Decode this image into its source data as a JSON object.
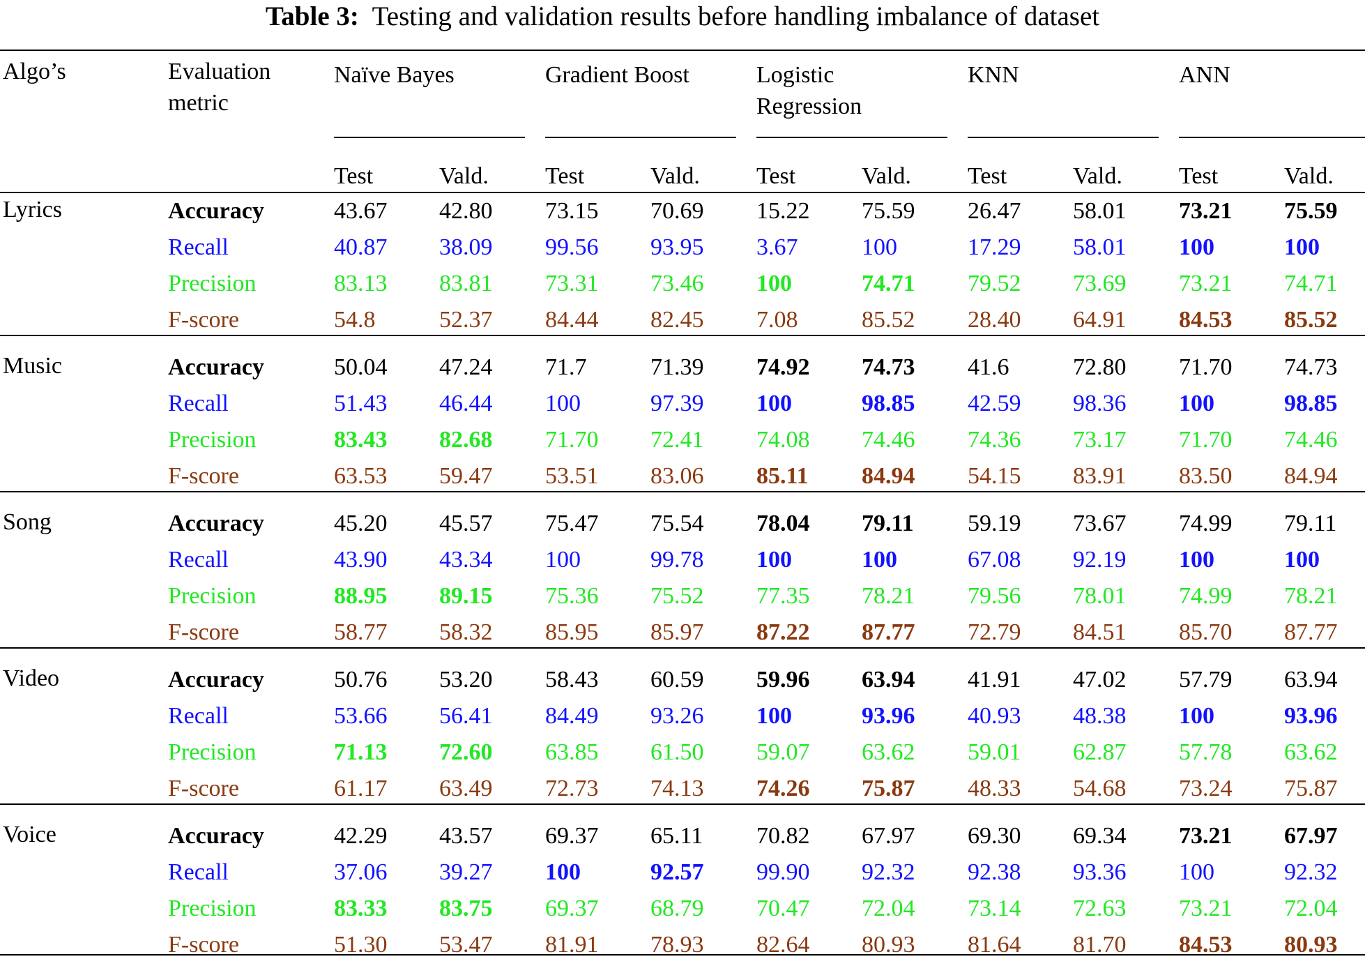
{
  "caption": {
    "label": "Table 3:",
    "text": "Testing and validation results before handling imbalance of dataset"
  },
  "header": {
    "algos": "Algo’s",
    "metric_line1": "Evaluation",
    "metric_line2": "metric",
    "models": [
      {
        "line1": "Naïve Bayes",
        "line2": ""
      },
      {
        "line1": "Gradient Boost",
        "line2": ""
      },
      {
        "line1": "Logistic",
        "line2": "Regression"
      },
      {
        "line1": "KNN",
        "line2": ""
      },
      {
        "line1": "ANN",
        "line2": ""
      }
    ],
    "test": "Test",
    "vald": "Vald."
  },
  "colors": {
    "accuracy": "#000000",
    "recall": "#1212ff",
    "precision": "#22e822",
    "fscore": "#8a3a10"
  },
  "groups": [
    {
      "name": "Lyrics",
      "rows": [
        {
          "metric": "Accuracy",
          "kind": "acc",
          "values": [
            "43.67",
            "42.80",
            "73.15",
            "70.69",
            "15.22",
            "75.59",
            "26.47",
            "58.01",
            "73.21",
            "75.59"
          ],
          "bold": [
            8,
            9
          ]
        },
        {
          "metric": "Recall",
          "kind": "rec",
          "values": [
            "40.87",
            "38.09",
            "99.56",
            "93.95",
            "3.67",
            "100",
            "17.29",
            "58.01",
            "100",
            "100"
          ],
          "bold": [
            8,
            9
          ]
        },
        {
          "metric": "Precision",
          "kind": "pre",
          "values": [
            "83.13",
            "83.81",
            "73.31",
            "73.46",
            "100",
            "74.71",
            "79.52",
            "73.69",
            "73.21",
            "74.71"
          ],
          "bold": [
            4,
            5
          ]
        },
        {
          "metric": "F-score",
          "kind": "fs",
          "values": [
            "54.8",
            "52.37",
            "84.44",
            "82.45",
            "7.08",
            "85.52",
            "28.40",
            "64.91",
            "84.53",
            "85.52"
          ],
          "bold": [
            8,
            9
          ]
        }
      ]
    },
    {
      "name": "Music",
      "rows": [
        {
          "metric": "Accuracy",
          "kind": "acc",
          "values": [
            "50.04",
            "47.24",
            "71.7",
            "71.39",
            "74.92",
            "74.73",
            "41.6",
            "72.80",
            "71.70",
            "74.73"
          ],
          "bold": [
            4,
            5
          ]
        },
        {
          "metric": "Recall",
          "kind": "rec",
          "values": [
            "51.43",
            "46.44",
            "100",
            "97.39",
            "100",
            "98.85",
            "42.59",
            "98.36",
            "100",
            "98.85"
          ],
          "bold": [
            4,
            5,
            8,
            9
          ]
        },
        {
          "metric": "Precision",
          "kind": "pre",
          "values": [
            "83.43",
            "82.68",
            "71.70",
            "72.41",
            "74.08",
            "74.46",
            "74.36",
            "73.17",
            "71.70",
            "74.46"
          ],
          "bold": [
            0,
            1
          ]
        },
        {
          "metric": "F-score",
          "kind": "fs",
          "values": [
            "63.53",
            "59.47",
            "53.51",
            "83.06",
            "85.11",
            "84.94",
            "54.15",
            "83.91",
            "83.50",
            "84.94"
          ],
          "bold": [
            4,
            5
          ]
        }
      ]
    },
    {
      "name": "Song",
      "rows": [
        {
          "metric": "Accuracy",
          "kind": "acc",
          "values": [
            "45.20",
            "45.57",
            "75.47",
            "75.54",
            "78.04",
            "79.11",
            "59.19",
            "73.67",
            "74.99",
            "79.11"
          ],
          "bold": [
            4,
            5
          ]
        },
        {
          "metric": "Recall",
          "kind": "rec",
          "values": [
            "43.90",
            "43.34",
            "100",
            "99.78",
            "100",
            "100",
            "67.08",
            "92.19",
            "100",
            "100"
          ],
          "bold": [
            4,
            5,
            8,
            9
          ]
        },
        {
          "metric": "Precision",
          "kind": "pre",
          "values": [
            "88.95",
            "89.15",
            "75.36",
            "75.52",
            "77.35",
            "78.21",
            "79.56",
            "78.01",
            "74.99",
            "78.21"
          ],
          "bold": [
            0,
            1
          ]
        },
        {
          "metric": "F-score",
          "kind": "fs",
          "values": [
            "58.77",
            "58.32",
            "85.95",
            "85.97",
            "87.22",
            "87.77",
            "72.79",
            "84.51",
            "85.70",
            "87.77"
          ],
          "bold": [
            4,
            5
          ]
        }
      ]
    },
    {
      "name": "Video",
      "rows": [
        {
          "metric": "Accuracy",
          "kind": "acc",
          "values": [
            "50.76",
            "53.20",
            "58.43",
            "60.59",
            "59.96",
            "63.94",
            "41.91",
            "47.02",
            "57.79",
            "63.94"
          ],
          "bold": [
            4,
            5
          ]
        },
        {
          "metric": "Recall",
          "kind": "rec",
          "values": [
            "53.66",
            "56.41",
            "84.49",
            "93.26",
            "100",
            "93.96",
            "40.93",
            "48.38",
            "100",
            "93.96"
          ],
          "bold": [
            4,
            5,
            8,
            9
          ]
        },
        {
          "metric": "Precision",
          "kind": "pre",
          "values": [
            "71.13",
            "72.60",
            "63.85",
            "61.50",
            "59.07",
            "63.62",
            "59.01",
            "62.87",
            "57.78",
            "63.62"
          ],
          "bold": [
            0,
            1
          ]
        },
        {
          "metric": "F-score",
          "kind": "fs",
          "values": [
            "61.17",
            "63.49",
            "72.73",
            "74.13",
            "74.26",
            "75.87",
            "48.33",
            "54.68",
            "73.24",
            "75.87"
          ],
          "bold": [
            4,
            5
          ]
        }
      ]
    },
    {
      "name": "Voice",
      "rows": [
        {
          "metric": "Accuracy",
          "kind": "acc",
          "values": [
            "42.29",
            "43.57",
            "69.37",
            "65.11",
            "70.82",
            "67.97",
            "69.30",
            "69.34",
            "73.21",
            "67.97"
          ],
          "bold": [
            8,
            9
          ]
        },
        {
          "metric": "Recall",
          "kind": "rec",
          "values": [
            "37.06",
            "39.27",
            "100",
            "92.57",
            "99.90",
            "92.32",
            "92.38",
            "93.36",
            "100",
            "92.32"
          ],
          "bold": [
            2,
            3
          ]
        },
        {
          "metric": "Precision",
          "kind": "pre",
          "values": [
            "83.33",
            "83.75",
            "69.37",
            "68.79",
            "70.47",
            "72.04",
            "73.14",
            "72.63",
            "73.21",
            "72.04"
          ],
          "bold": [
            0,
            1
          ]
        },
        {
          "metric": "F-score",
          "kind": "fs",
          "values": [
            "51.30",
            "53.47",
            "81.91",
            "78.93",
            "82.64",
            "80.93",
            "81.64",
            "81.70",
            "84.53",
            "80.93"
          ],
          "bold": [
            8,
            9
          ]
        }
      ]
    }
  ]
}
